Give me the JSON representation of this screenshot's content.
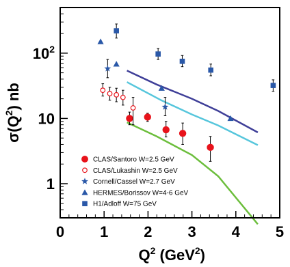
{
  "chart_data": {
    "type": "scatter",
    "xlabel": {
      "base": "Q",
      "sup": "2",
      "rest": " (GeV",
      "sup2": "2",
      "end": ")"
    },
    "ylabel": {
      "base": "σ(Q",
      "sup": "2",
      "rest": ") nb"
    },
    "xlim": [
      0,
      5
    ],
    "ylim": [
      0.3,
      500
    ],
    "y_scale": "log",
    "x_ticks": [
      "0",
      "1",
      "2",
      "3",
      "4",
      "5"
    ],
    "y_ticks": [
      {
        "value": 1,
        "base": "1",
        "sup": ""
      },
      {
        "value": 10,
        "base": "10",
        "sup": ""
      },
      {
        "value": 100,
        "base": "10",
        "sup": "2"
      }
    ],
    "legend_position": "bottom-left",
    "series": [
      {
        "name": "CLAS/Santoro W=2.5 GeV",
        "marker": "filled-circle",
        "color": "#e8131b",
        "points": [
          {
            "x": 1.58,
            "y": 10.0,
            "lo": 8.0,
            "hi": 12.5
          },
          {
            "x": 1.99,
            "y": 10.5,
            "lo": 9.0,
            "hi": 12.0
          },
          {
            "x": 2.41,
            "y": 6.7,
            "lo": 5.2,
            "hi": 9.0
          },
          {
            "x": 2.79,
            "y": 5.9,
            "lo": 4.0,
            "hi": 8.5
          },
          {
            "x": 3.42,
            "y": 3.6,
            "lo": 2.2,
            "hi": 5.3
          }
        ]
      },
      {
        "name": "CLAS/Lukashin W=2.5 GeV",
        "marker": "open-circle",
        "color": "#e8131b",
        "points": [
          {
            "x": 0.97,
            "y": 27,
            "lo": 22,
            "hi": 34
          },
          {
            "x": 1.13,
            "y": 24,
            "lo": 19,
            "hi": 30
          },
          {
            "x": 1.28,
            "y": 23,
            "lo": 18,
            "hi": 29
          },
          {
            "x": 1.43,
            "y": 21,
            "lo": 16,
            "hi": 27
          },
          {
            "x": 1.66,
            "y": 14.5,
            "lo": 8,
            "hi": 21
          }
        ]
      },
      {
        "name": "Cornell/Cassel W=2.7 GeV",
        "marker": "star",
        "color": "#2a58a8",
        "points": [
          {
            "x": 1.08,
            "y": 58,
            "lo": 42,
            "hi": 80
          },
          {
            "x": 2.39,
            "y": 15,
            "lo": 11,
            "hi": 21
          }
        ]
      },
      {
        "name": "HERMES/Borissov W=4-6 GeV",
        "marker": "triangle",
        "color": "#2a58a8",
        "points": [
          {
            "x": 0.92,
            "y": 150
          },
          {
            "x": 1.28,
            "y": 68
          },
          {
            "x": 2.31,
            "y": 29
          },
          {
            "x": 3.88,
            "y": 10
          }
        ]
      },
      {
        "name": "H1/Adloff W=75 GeV",
        "marker": "square",
        "color": "#2a58a8",
        "points": [
          {
            "x": 1.28,
            "y": 220,
            "lo": 170,
            "hi": 280
          },
          {
            "x": 2.23,
            "y": 97,
            "lo": 80,
            "hi": 118
          },
          {
            "x": 2.78,
            "y": 75,
            "lo": 62,
            "hi": 92
          },
          {
            "x": 3.43,
            "y": 55,
            "lo": 45,
            "hi": 68
          },
          {
            "x": 4.85,
            "y": 32,
            "lo": 26,
            "hi": 39
          }
        ]
      }
    ],
    "curves": [
      {
        "color": "#3f3f98",
        "points": [
          [
            1.52,
            54
          ],
          [
            2.2,
            33
          ],
          [
            3.0,
            20
          ],
          [
            3.6,
            13
          ],
          [
            4.5,
            6.1
          ]
        ]
      },
      {
        "color": "#56c6dc",
        "points": [
          [
            1.52,
            36
          ],
          [
            2.3,
            19
          ],
          [
            3.0,
            11.5
          ],
          [
            3.6,
            7.8
          ],
          [
            4.5,
            3.9
          ]
        ]
      },
      {
        "color": "#6cbe3c",
        "points": [
          [
            1.52,
            8.7
          ],
          [
            2.2,
            5.3
          ],
          [
            3.0,
            2.75
          ],
          [
            3.6,
            1.3
          ],
          [
            4.5,
            0.24
          ]
        ]
      }
    ]
  }
}
